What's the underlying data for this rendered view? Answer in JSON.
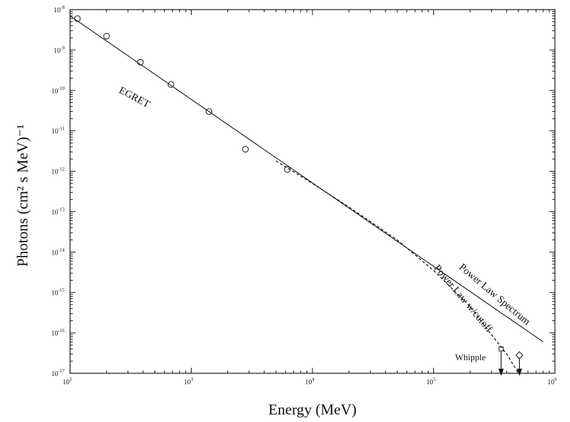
{
  "chart_data": {
    "type": "scatter",
    "xlabel": "Energy (MeV)",
    "ylabel": "Photons (cm² s MeV)⁻¹",
    "xscale": "log",
    "yscale": "log",
    "xlim": [
      100,
      1000000
    ],
    "ylim": [
      1e-17,
      1e-08
    ],
    "x_ticks": [
      {
        "value": 100,
        "base": "10",
        "exp": "2"
      },
      {
        "value": 1000,
        "base": "10",
        "exp": "3"
      },
      {
        "value": 10000,
        "base": "10",
        "exp": "4"
      },
      {
        "value": 100000,
        "base": "10",
        "exp": "5"
      },
      {
        "value": 1000000,
        "base": "10",
        "exp": "6"
      }
    ],
    "y_ticks": [
      {
        "value": 1e-08,
        "base": "10",
        "exp": "-8"
      },
      {
        "value": 1e-09,
        "base": "10",
        "exp": "-9"
      },
      {
        "value": 1e-10,
        "base": "10",
        "exp": "-10"
      },
      {
        "value": 1e-11,
        "base": "10",
        "exp": "-11"
      },
      {
        "value": 1e-12,
        "base": "10",
        "exp": "-12"
      },
      {
        "value": 1e-13,
        "base": "10",
        "exp": "-13"
      },
      {
        "value": 1e-14,
        "base": "10",
        "exp": "-14"
      },
      {
        "value": 1e-15,
        "base": "10",
        "exp": "-15"
      },
      {
        "value": 1e-16,
        "base": "10",
        "exp": "-16"
      },
      {
        "value": 1e-17,
        "base": "10",
        "exp": "-17"
      }
    ],
    "series": [
      {
        "name": "Power Law Spectrum",
        "style": "solid",
        "points": [
          {
            "x": 100,
            "y": 7e-09
          },
          {
            "x": 800000,
            "y": 6e-17
          }
        ]
      },
      {
        "name": "Power Law w/cutoff",
        "style": "dashed",
        "points": [
          {
            "x": 5000,
            "y": 1.8e-12
          },
          {
            "x": 10000,
            "y": 5e-13
          },
          {
            "x": 20000,
            "y": 1.3e-13
          },
          {
            "x": 50000,
            "y": 2e-14
          },
          {
            "x": 100000,
            "y": 3.5e-15
          },
          {
            "x": 200000,
            "y": 4.5e-16
          },
          {
            "x": 300000,
            "y": 9e-17
          },
          {
            "x": 400000,
            "y": 3e-17
          },
          {
            "x": 500000,
            "y": 1e-17
          }
        ]
      },
      {
        "name": "EGRET",
        "style": "circle",
        "points": [
          {
            "x": 115,
            "y": 6e-09
          },
          {
            "x": 200,
            "y": 2.2e-09
          },
          {
            "x": 380,
            "y": 5e-10
          },
          {
            "x": 680,
            "y": 1.4e-10
          },
          {
            "x": 1400,
            "y": 3e-11
          },
          {
            "x": 2800,
            "y": 3.5e-12
          },
          {
            "x": 6200,
            "y": 1.1e-12
          }
        ]
      },
      {
        "name": "Whipple",
        "style": "upper-limit",
        "points": [
          {
            "x": 360000,
            "y": 4e-17,
            "marker": "square"
          },
          {
            "x": 510000,
            "y": 2.8e-17,
            "marker": "diamond"
          }
        ]
      }
    ],
    "annotations": [
      {
        "text": "EGRET",
        "x": 250,
        "y": 9e-11,
        "rotate": 28
      },
      {
        "text": "Power Law Spectrum",
        "x": 160000,
        "y": 4e-15,
        "rotate": 40
      },
      {
        "text": "Power Law w/cutoff",
        "x": 100000,
        "y": 4e-15,
        "rotate": 50
      },
      {
        "text": "Whipple",
        "x": 150000,
        "y": 2.1e-17,
        "rotate": 0
      }
    ],
    "grid": false
  }
}
